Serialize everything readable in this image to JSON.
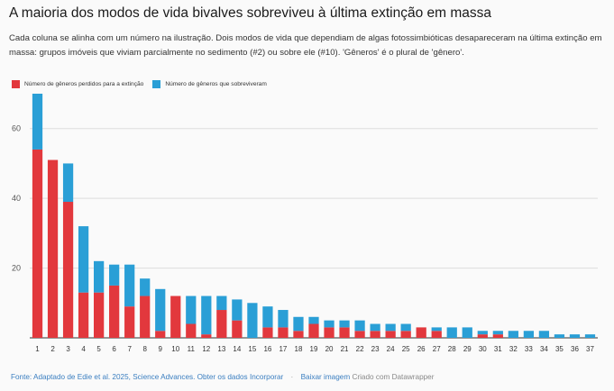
{
  "title": "A maioria dos modos de vida bivalves sobreviveu à última extinção em massa",
  "subtitle": "Cada coluna se alinha com um número na ilustração. Dois modos de vida que dependiam de algas fotossimbióticas desapareceram na última extinção em massa: grupos imóveis que viviam parcialmente no sedimento (#2) ou sobre ele (#10). 'Gêneros' é o plural de 'gênero'.",
  "colors": {
    "lost": "#e2383d",
    "survived": "#2a9fd6",
    "grid": "#dddddd"
  },
  "footer": {
    "source": "Fonte: Adaptado de Edie et al. 2025, Science Advances.",
    "get_data": "Obter os dados",
    "embed": "Incorporar",
    "download": "Baixar imagem",
    "credit": "Criado com Datawrapper"
  },
  "chart_data": {
    "type": "bar",
    "stacked": true,
    "categories": [
      "1",
      "2",
      "3",
      "4",
      "5",
      "6",
      "7",
      "8",
      "9",
      "10",
      "11",
      "12",
      "13",
      "14",
      "15",
      "16",
      "17",
      "18",
      "19",
      "20",
      "21",
      "22",
      "23",
      "24",
      "25",
      "26",
      "27",
      "28",
      "29",
      "30",
      "31",
      "32",
      "33",
      "34",
      "35",
      "36",
      "37"
    ],
    "series": [
      {
        "name": "Número de gêneros perdidos para a extinção",
        "values": [
          54,
          51,
          39,
          13,
          13,
          15,
          9,
          12,
          2,
          12,
          4,
          1,
          8,
          5,
          0,
          3,
          3,
          2,
          4,
          3,
          3,
          2,
          2,
          2,
          2,
          3,
          2,
          0,
          0,
          1,
          1,
          0,
          0,
          0,
          0,
          0,
          0
        ]
      },
      {
        "name": "Número de gêneros que sobreviveram",
        "values": [
          16,
          0,
          11,
          19,
          9,
          6,
          12,
          5,
          12,
          0,
          8,
          11,
          4,
          6,
          10,
          6,
          5,
          4,
          2,
          2,
          2,
          3,
          2,
          2,
          2,
          0,
          1,
          3,
          3,
          1,
          1,
          2,
          2,
          2,
          1,
          1,
          1
        ]
      }
    ],
    "yticks": [
      20,
      40,
      60
    ],
    "ylim": [
      0,
      70
    ],
    "grid": true,
    "legend_position": "top-left"
  }
}
